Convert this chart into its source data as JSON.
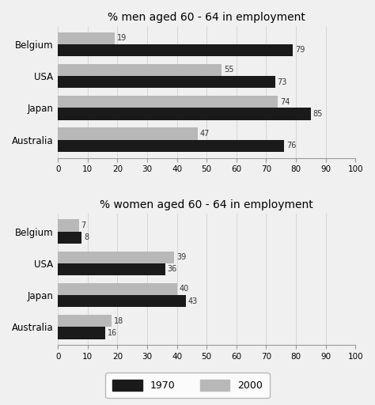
{
  "men_title": "% men aged 60 - 64 in employment",
  "women_title": "% women aged 60 - 64 in employment",
  "countries": [
    "Belgium",
    "USA",
    "Japan",
    "Australia"
  ],
  "men_1970": [
    79,
    73,
    85,
    76
  ],
  "men_2000": [
    19,
    55,
    74,
    47
  ],
  "women_1970": [
    8,
    36,
    43,
    16
  ],
  "women_2000": [
    7,
    39,
    40,
    18
  ],
  "color_1970": "#1a1a1a",
  "color_2000": "#b8b8b8",
  "bg_color": "#f0f0f0",
  "xlim": [
    0,
    100
  ],
  "xticks": [
    0,
    10,
    20,
    30,
    40,
    50,
    60,
    70,
    80,
    90,
    100
  ],
  "bar_height": 0.38,
  "label_1970": "1970",
  "label_2000": "2000",
  "title_fontsize": 10,
  "country_fontsize": 8.5,
  "tick_fontsize": 7.5,
  "value_fontsize": 7
}
